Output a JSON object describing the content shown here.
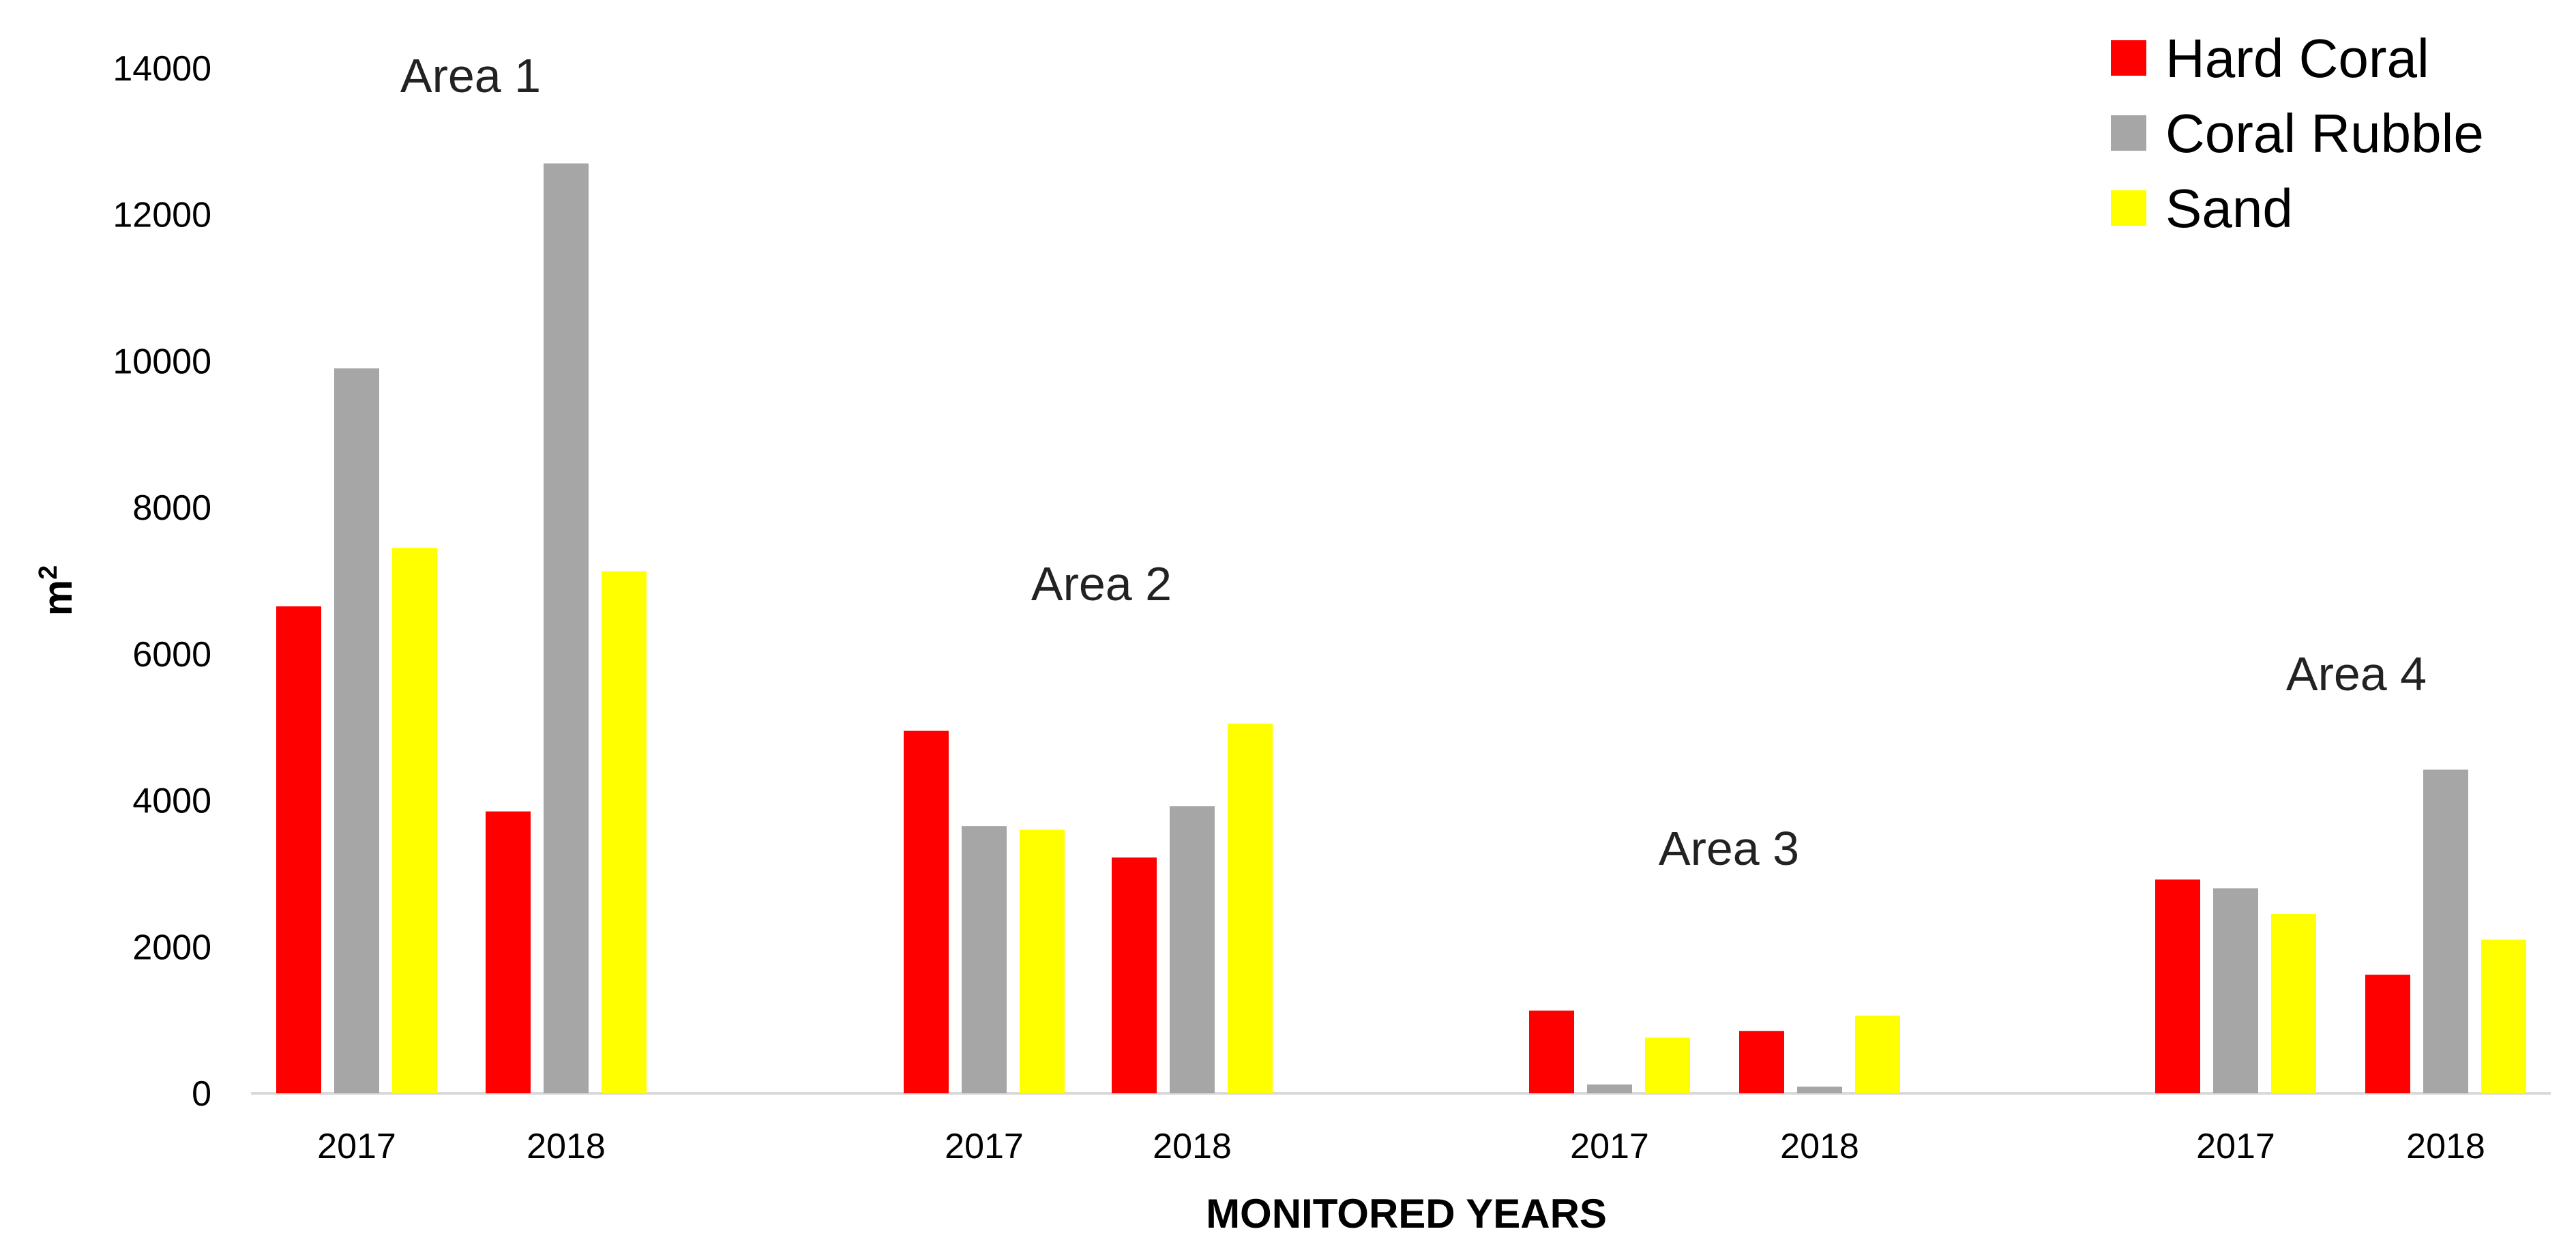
{
  "chart_data": {
    "type": "bar",
    "xlabel": "MONITORED YEARS",
    "ylabel": {
      "base": "m",
      "sup": "2"
    },
    "ylim": [
      0,
      14000
    ],
    "yticks": [
      "0",
      "2000",
      "4000",
      "6000",
      "8000",
      "10000",
      "12000",
      "14000"
    ],
    "grid": false,
    "legend_position": "top-right",
    "legend": [
      {
        "name": "Hard Coral",
        "color": "#ff0000"
      },
      {
        "name": "Coral Rubble",
        "color": "#a6a6a6"
      },
      {
        "name": "Sand",
        "color": "#ffff00"
      }
    ],
    "groups": [
      {
        "label": "Area 1",
        "categories": [
          {
            "label": "2017",
            "values": [
              6650,
              9900,
              7450
            ]
          },
          {
            "label": "2018",
            "values": [
              3850,
              12700,
              7130
            ]
          }
        ]
      },
      {
        "label": "Area 2",
        "categories": [
          {
            "label": "2017",
            "values": [
              4950,
              3650,
              3600
            ]
          },
          {
            "label": "2018",
            "values": [
              3220,
              3920,
              5050
            ]
          }
        ]
      },
      {
        "label": "Area 3",
        "categories": [
          {
            "label": "2017",
            "values": [
              1130,
              120,
              760
            ]
          },
          {
            "label": "2018",
            "values": [
              850,
              90,
              1060
            ]
          }
        ]
      },
      {
        "label": "Area 4",
        "categories": [
          {
            "label": "2017",
            "values": [
              2920,
              2800,
              2450
            ]
          },
          {
            "label": "2018",
            "values": [
              1620,
              4420,
              2100
            ]
          }
        ]
      }
    ]
  }
}
